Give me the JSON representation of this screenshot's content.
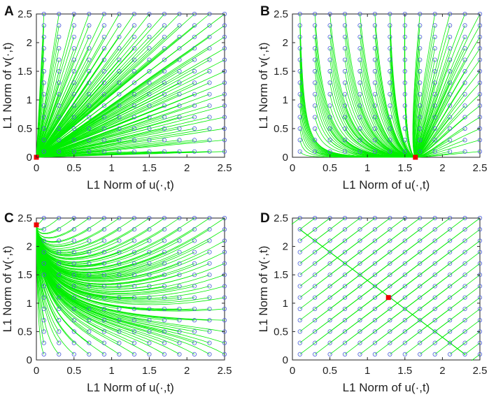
{
  "figure": {
    "colors": {
      "trajectory": "#00ee00",
      "initial_marker": "#4a5ed8",
      "equilibrium": "#ee0000",
      "axes": "#222222",
      "background": "#ffffff"
    }
  },
  "chart_data": [
    {
      "type": "line",
      "panel": "A",
      "title": "",
      "xlabel": "L1 Norm of u(·,t)",
      "ylabel": "L1 Norm of v(·,t)",
      "xlim": [
        0,
        2.5
      ],
      "ylim": [
        0,
        2.5
      ],
      "xticks": [
        "0",
        "0.5",
        "1",
        "1.5",
        "2",
        "2.5"
      ],
      "yticks": [
        "0",
        "0.5",
        "1",
        "1.5",
        "2",
        "2.5"
      ],
      "initial_conditions_grid": {
        "x_start": 0.1,
        "y_start": 0.1,
        "step": 0.2,
        "count": 13
      },
      "equilibrium": [
        0,
        0
      ],
      "trajectories": "all initial points converge toward the origin along near-straight paths; strong bundle approaching along the u-axis"
    },
    {
      "type": "line",
      "panel": "B",
      "title": "",
      "xlabel": "L1 Norm of u(·,t)",
      "ylabel": "L1 Norm of v(·,t)",
      "xlim": [
        0,
        2.5
      ],
      "ylim": [
        0,
        2.5
      ],
      "xticks": [
        "0",
        "0.5",
        "1",
        "1.5",
        "2",
        "2.5"
      ],
      "yticks": [
        "0",
        "0.5",
        "1",
        "1.5",
        "2",
        "2.5"
      ],
      "initial_conditions_grid": {
        "x_start": 0.1,
        "y_start": 0.1,
        "step": 0.2,
        "count": 13
      },
      "equilibrium": [
        1.64,
        0
      ],
      "trajectories": "v decays quickly while u approaches 1.64; curves bend down to the u-axis equilibrium"
    },
    {
      "type": "line",
      "panel": "C",
      "title": "",
      "xlabel": "L1 Norm of u(·,t)",
      "ylabel": "L1 Norm of v(·,t)",
      "xlim": [
        0,
        2.5
      ],
      "ylim": [
        0,
        2.5
      ],
      "xticks": [
        "0",
        "0.5",
        "1",
        "1.5",
        "2",
        "2.5"
      ],
      "yticks": [
        "0",
        "0.5",
        "1",
        "1.5",
        "2",
        "2.5"
      ],
      "initial_conditions_grid": {
        "x_start": 0.1,
        "y_start": 0.1,
        "step": 0.2,
        "count": 13
      },
      "equilibrium": [
        0,
        2.38
      ],
      "trajectories": "u decays while v approaches 2.38; curves gather along a slow manifold running from (2.4, 0.1) up to the v-axis equilibrium"
    },
    {
      "type": "line",
      "panel": "D",
      "title": "",
      "xlabel": "L1 Norm of u(·,t)",
      "ylabel": "L1 Norm of v(·,t)",
      "xlim": [
        0,
        2.5
      ],
      "ylim": [
        0,
        2.5
      ],
      "xticks": [
        "0",
        "0.5",
        "1",
        "1.5",
        "2",
        "2.5"
      ],
      "yticks": [
        "0",
        "0.5",
        "1",
        "1.5",
        "2",
        "2.5"
      ],
      "initial_conditions_grid": {
        "x_start": 0.1,
        "y_start": 0.1,
        "step": 0.2,
        "count": 13
      },
      "equilibrium": [
        1.28,
        1.1
      ],
      "trajectories": "straight-line paths onto the line of equilibria u + v = const from (0.1, 2.3) to (2.3, 0.1); marked point at (1.28, 1.1)"
    }
  ]
}
